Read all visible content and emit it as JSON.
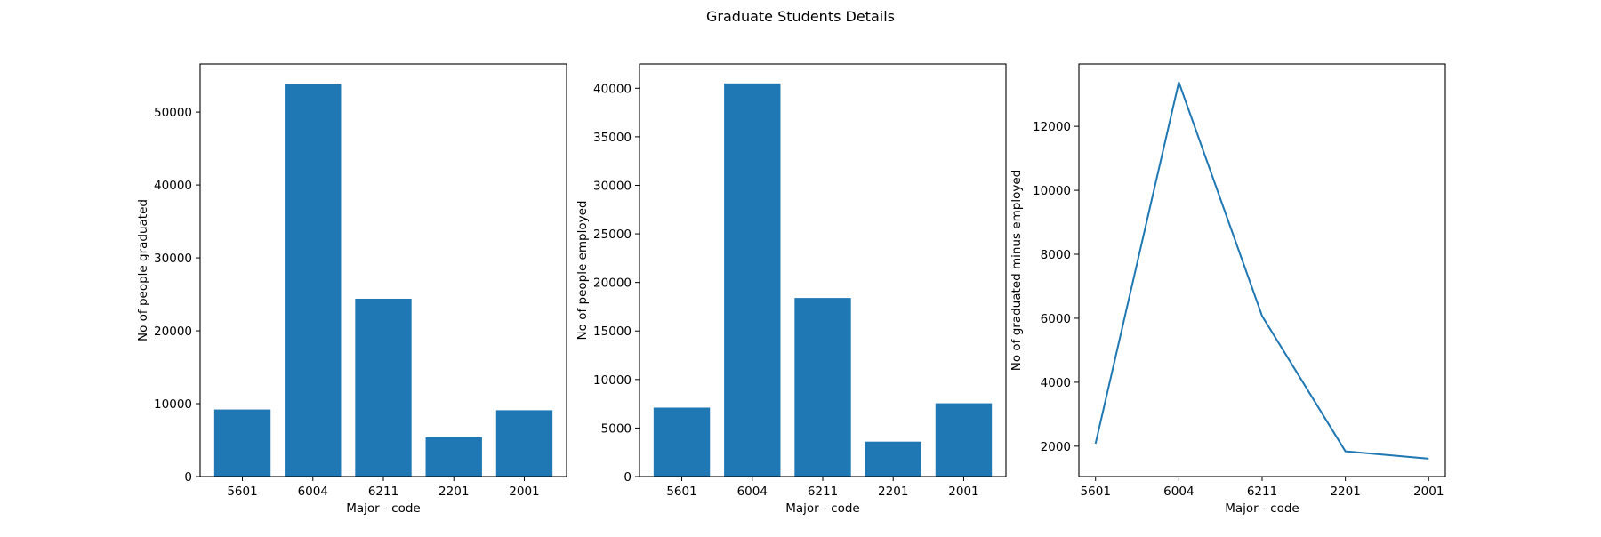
{
  "figure": {
    "title": "Graduate Students Details"
  },
  "chart_data": [
    {
      "type": "bar",
      "categories": [
        "5601",
        "6004",
        "6211",
        "2201",
        "2001"
      ],
      "values": [
        9200,
        53900,
        24400,
        5400,
        9100
      ],
      "xlabel": "Major - code",
      "ylabel": "No of people graduated",
      "ylim": [
        0,
        56600
      ],
      "yticks": [
        0,
        10000,
        20000,
        30000,
        40000,
        50000
      ],
      "grid": false,
      "color": "#1f77b4"
    },
    {
      "type": "bar",
      "categories": [
        "5601",
        "6004",
        "6211",
        "2201",
        "2001"
      ],
      "values": [
        7100,
        40500,
        18400,
        3600,
        7550
      ],
      "xlabel": "Major - code",
      "ylabel": "No of people employed",
      "ylim": [
        0,
        42500
      ],
      "yticks": [
        0,
        5000,
        10000,
        15000,
        20000,
        25000,
        30000,
        35000,
        40000
      ],
      "grid": false,
      "color": "#1f77b4"
    },
    {
      "type": "line",
      "categories": [
        "5601",
        "6004",
        "6211",
        "2201",
        "2001"
      ],
      "values": [
        2080,
        13380,
        6070,
        1840,
        1610
      ],
      "xlabel": "Major - code",
      "ylabel": "No of graduated minus employed",
      "ylim": [
        1050,
        13950
      ],
      "yticks": [
        2000,
        4000,
        6000,
        8000,
        10000,
        12000
      ],
      "grid": false,
      "color": "#1f77b4"
    }
  ]
}
